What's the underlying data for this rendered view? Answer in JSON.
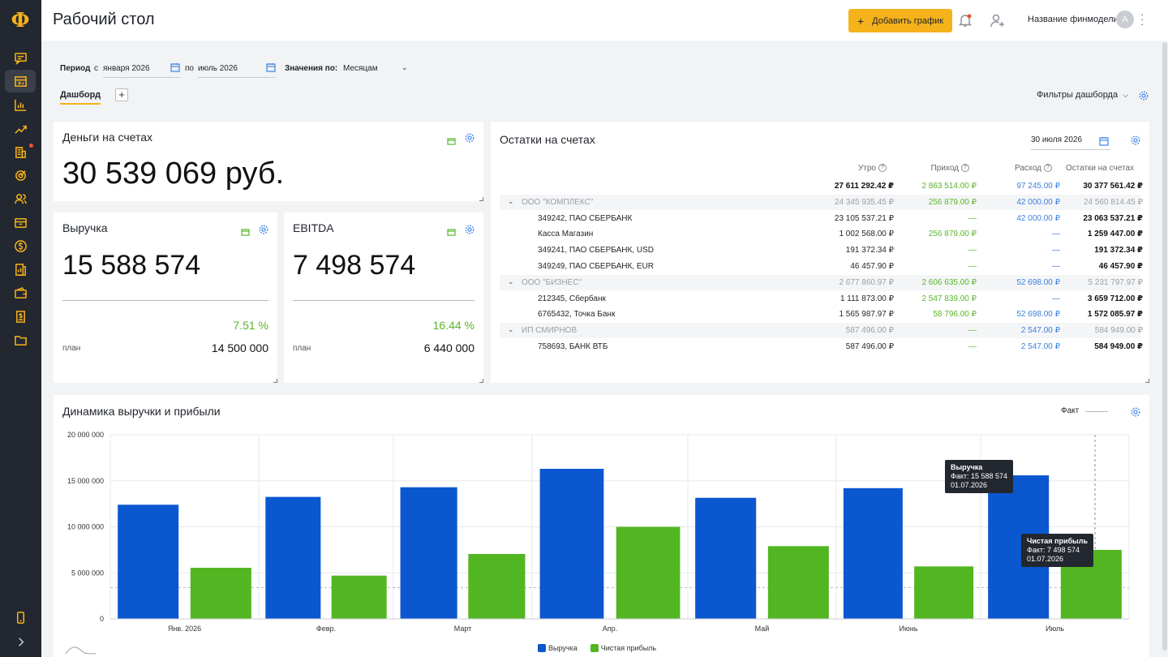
{
  "app": {
    "logo": "Ф"
  },
  "header": {
    "title": "Рабочий стол",
    "add_chart": "Добавить график",
    "model_name": "Название финмодели",
    "avatar_letter": "A"
  },
  "filters": {
    "period_label": "Период",
    "from_prefix": "с",
    "from_value": "января 2026",
    "to_prefix": "по",
    "to_value": "июль 2026",
    "values_label": "Значения по:",
    "values_value": "Месяцам"
  },
  "tabs": {
    "dashboard": "Дашборд",
    "add": "+",
    "dashboard_filters": "Фильтры дашборда"
  },
  "money_card": {
    "title": "Деньги на счетах",
    "value": "30 539 069 руб."
  },
  "revenue_card": {
    "title": "Выручка",
    "value": "15 588 574",
    "percent": "7.51 %",
    "plan_label": "план",
    "plan_value": "14 500 000"
  },
  "ebitda_card": {
    "title": "EBITDA",
    "value": "7 498 574",
    "percent": "16.44 %",
    "plan_label": "план",
    "plan_value": "6 440 000"
  },
  "balances": {
    "title": "Остатки на счетах",
    "date": "30 июля 2026",
    "headers": {
      "morning": "Утро",
      "income": "Приход",
      "expense": "Расход",
      "balance": "Остатки на счетах"
    },
    "total": {
      "morning": "27 611 292.42 ₽",
      "income": "2 863 514.00 ₽",
      "expense": "97 245.00 ₽",
      "balance": "30 377 561.42 ₽"
    },
    "rows": [
      {
        "name": "ООО \"КОМПЛЕКС\"",
        "morning": "24 345 935.45 ₽",
        "income": "256 879.00 ₽",
        "expense": "42 000.00 ₽",
        "balance": "24 560 814.45 ₽"
      },
      {
        "name": "349242, ПАО СБЕРБАНК",
        "morning": "23 105 537.21 ₽",
        "income": "—",
        "expense": "42 000.00 ₽",
        "balance": "23 063 537.21 ₽"
      },
      {
        "name": "Касса Магазин",
        "morning": "1 002 568.00 ₽",
        "income": "256 879.00 ₽",
        "expense": "—",
        "balance": "1 259 447.00 ₽"
      },
      {
        "name": "349241, ПАО СБЕРБАНК, USD",
        "morning": "191 372.34 ₽",
        "income": "—",
        "expense": "—",
        "balance": "191 372.34 ₽"
      },
      {
        "name": "349249, ПАО СБЕРБАНК, EUR",
        "morning": "46 457.90 ₽",
        "income": "—",
        "expense": "—",
        "balance": "46 457.90 ₽"
      },
      {
        "name": "ООО \"БИЗНЕС\"",
        "morning": "2 677 860.97 ₽",
        "income": "2 606 635.00 ₽",
        "expense": "52 698.00 ₽",
        "balance": "5 231 797.97 ₽"
      },
      {
        "name": "212345, Сбербанк",
        "morning": "1 111 873.00 ₽",
        "income": "2 547 839.00 ₽",
        "expense": "—",
        "balance": "3 659 712.00 ₽"
      },
      {
        "name": "6765432, Точка Банк",
        "morning": "1 565 987.97 ₽",
        "income": "58 796.00 ₽",
        "expense": "52 698.00 ₽",
        "balance": "1 572 085.97 ₽"
      },
      {
        "name": "ИП СМИРНОВ",
        "morning": "587 496.00 ₽",
        "income": "—",
        "expense": "2 547.00 ₽",
        "balance": "584 949.00 ₽"
      },
      {
        "name": "758693, БАНК ВТБ",
        "morning": "587 496.00 ₽",
        "income": "—",
        "expense": "2 547.00 ₽",
        "balance": "584 949.00 ₽"
      }
    ]
  },
  "chart_section": {
    "title": "Динамика выручки и прибыли",
    "fact_label": "Факт"
  },
  "tooltips": {
    "revenue": {
      "title": "Выручка",
      "line1": "Факт: 15 588 574",
      "line2": "01.07.2026"
    },
    "profit": {
      "title": "Чистая прибыль",
      "line1": "Факт: 7 498 574",
      "line2": "01.07.2026"
    }
  },
  "colors": {
    "accent": "#f5b21b",
    "revenue": "#0b57d0",
    "profit": "#52b623",
    "sidebar": "#23272f"
  },
  "chart_data": {
    "type": "bar",
    "categories": [
      "Янв. 2026",
      "Февр.",
      "Март",
      "Апр.",
      "Май",
      "Июнь",
      "Июль"
    ],
    "series": [
      {
        "name": "Выручка",
        "values": [
          12400000,
          13250000,
          14300000,
          16300000,
          13150000,
          14200000,
          15588574
        ]
      },
      {
        "name": "Чистая прибыль",
        "values": [
          5550000,
          4700000,
          7050000,
          10000000,
          7900000,
          5700000,
          7498574
        ]
      }
    ],
    "yticks": [
      "0",
      "5 000 000",
      "10 000 000",
      "15 000 000",
      "20 000 000"
    ],
    "ylim": [
      0,
      20000000
    ],
    "grid": true,
    "legend_position": "bottom"
  }
}
